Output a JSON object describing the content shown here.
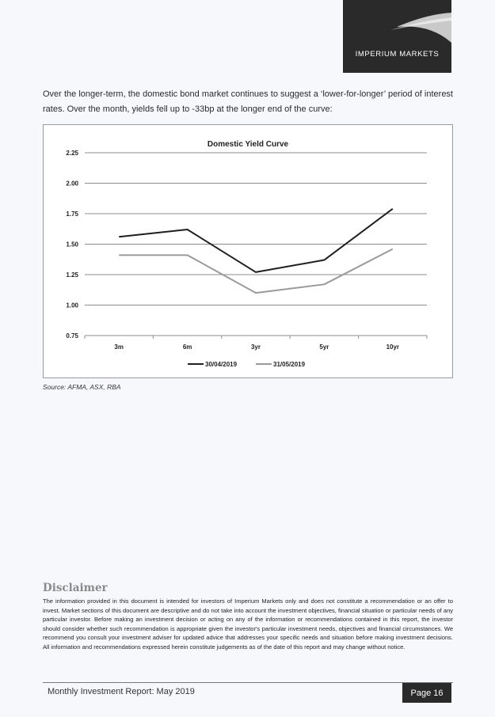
{
  "header": {
    "logo_text": "IMPERIUM MARKETS"
  },
  "intro_text": "Over the longer-term, the domestic bond market continues to suggest a ‘lower-for-longer’ period of interest rates. Over the month, yields fell up to -33bp at the longer end of the curve:",
  "chart_data": {
    "type": "line",
    "title": "Domestic Yield Curve",
    "xlabel": "",
    "ylabel": "",
    "categories": [
      "3m",
      "6m",
      "3yr",
      "5yr",
      "10yr"
    ],
    "ylim": [
      0.75,
      2.25
    ],
    "yticks": [
      "0.75",
      "1.00",
      "1.25",
      "1.50",
      "1.75",
      "2.00",
      "2.25"
    ],
    "grid": true,
    "legend_position": "bottom",
    "series": [
      {
        "name": "30/04/2019",
        "color": "#1f1f1f",
        "values": [
          1.56,
          1.62,
          1.27,
          1.37,
          1.79
        ]
      },
      {
        "name": "31/05/2019",
        "color": "#9a9a9a",
        "values": [
          1.41,
          1.41,
          1.1,
          1.17,
          1.46
        ]
      }
    ]
  },
  "source_text": "Source: AFMA, ASX, RBA",
  "disclaimer": {
    "title": "Disclaimer",
    "text": "The information provided in this document is intended for investors of Imperium Markets only and does not constitute a recommendation or an offer to invest. Market sections of this document are descriptive and do not take into account the investment objectives, financial situation or particular needs of any particular investor. Before making an investment decision or acting on any of the information or recommendations contained in this report, the investor should consider whether such recommendation is appropriate given the investor's particular investment needs, objectives and financial circumstances. We recommend you consult your investment adviser for updated advice that addresses your specific needs and situation before making investment decisions. All information and recommendations expressed herein constitute judgements as of the date of this report and may change without notice."
  },
  "footer": {
    "title": "Monthly Investment Report: May 2019",
    "page_label": "Page 16"
  }
}
